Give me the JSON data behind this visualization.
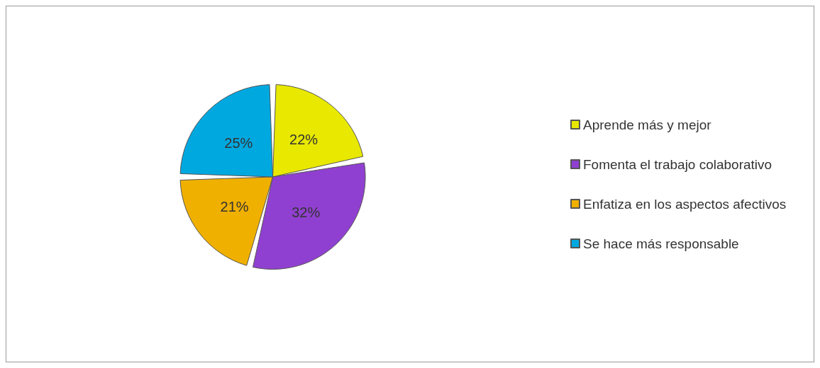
{
  "chart_data": {
    "type": "pie",
    "categories": [
      "Aprende más y mejor",
      "Fomenta el trabajo colaborativo",
      "Enfatiza en los aspectos afectivos",
      "Se hace más responsable"
    ],
    "values": [
      22,
      32,
      21,
      25
    ],
    "colors": [
      "#e8e800",
      "#9040d0",
      "#f0b000",
      "#00a8e0"
    ],
    "value_labels": [
      "22%",
      "32%",
      "21%",
      "25%"
    ],
    "legend": "right"
  }
}
